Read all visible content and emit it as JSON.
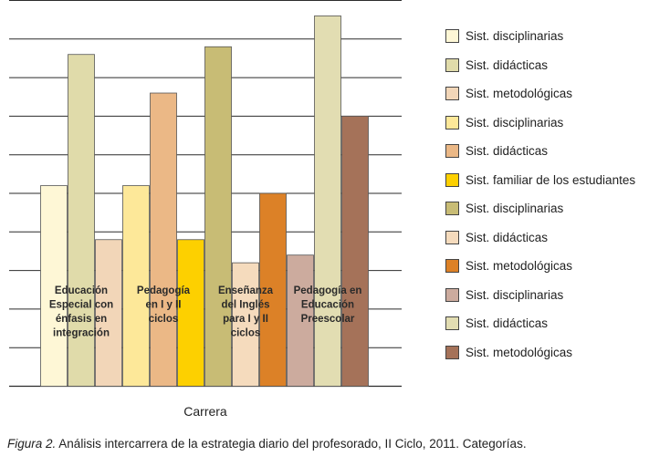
{
  "chart_data": {
    "type": "bar",
    "xlabel": "Carrera",
    "ylabel": "",
    "ylim": [
      0,
      10
    ],
    "grid": true,
    "legend_position": "right",
    "categories": [
      {
        "label": [
          "Educación",
          "Especial con",
          "énfasis en",
          "integración"
        ],
        "bars": [
          {
            "name": "Sist. disciplinarias",
            "value": 5.2,
            "color": "#fef7d6"
          },
          {
            "name": "Sist. didácticas",
            "value": 8.6,
            "color": "#e0dbaa"
          },
          {
            "name": "Sist. metodológicas",
            "value": 3.8,
            "color": "#f2d6b8"
          }
        ]
      },
      {
        "label": [
          "Pedagogía",
          "en I y II",
          "ciclos"
        ],
        "bars": [
          {
            "name": "Sist. disciplinarias",
            "value": 5.2,
            "color": "#fde899"
          },
          {
            "name": "Sist. didácticas",
            "value": 7.6,
            "color": "#ebb886"
          },
          {
            "name": "Sist. familiar de los estudiantes",
            "value": 3.8,
            "color": "#fdd000"
          }
        ]
      },
      {
        "label": [
          "Enseñanza",
          "del Inglés",
          "para I y II",
          "ciclos"
        ],
        "bars": [
          {
            "name": "Sist. disciplinarias",
            "value": 8.8,
            "color": "#c8bc75"
          },
          {
            "name": "Sist. didácticas",
            "value": 3.2,
            "color": "#f5dbbd"
          },
          {
            "name": "Sist. metodológicas",
            "value": 5.0,
            "color": "#dc8127"
          }
        ]
      },
      {
        "label": [
          "Pedagogía en",
          "Educación",
          "Preescolar"
        ],
        "bars": [
          {
            "name": "Sist. disciplinarias",
            "value": 3.4,
            "color": "#ccab9e"
          },
          {
            "name": "Sist. didácticas",
            "value": 9.6,
            "color": "#e2ddb2"
          },
          {
            "name": "Sist. metodológicas",
            "value": 7.0,
            "color": "#a57259"
          }
        ]
      }
    ],
    "legend": [
      {
        "label": "Sist. disciplinarias",
        "color": "#fef7d6"
      },
      {
        "label": "Sist. didácticas",
        "color": "#e0dbaa"
      },
      {
        "label": "Sist. metodológicas",
        "color": "#f2d6b8"
      },
      {
        "label": "Sist. disciplinarias",
        "color": "#fde899"
      },
      {
        "label": "Sist. didácticas",
        "color": "#ebb886"
      },
      {
        "label": "Sist. familiar de los estudiantes",
        "color": "#fdd000"
      },
      {
        "label": "Sist. disciplinarias",
        "color": "#c8bc75"
      },
      {
        "label": "Sist. didácticas",
        "color": "#f5dbbd"
      },
      {
        "label": "Sist. metodológicas",
        "color": "#dc8127"
      },
      {
        "label": "Sist. disciplinarias",
        "color": "#ccab9e"
      },
      {
        "label": "Sist. didácticas",
        "color": "#e2ddb2"
      },
      {
        "label": "Sist. metodológicas",
        "color": "#a57259"
      }
    ]
  },
  "caption": {
    "figure": "Figura 2.",
    "text": "Análisis intercarrera de la estrategia diario del profesorado, II Ciclo, 2011. Categorías."
  }
}
